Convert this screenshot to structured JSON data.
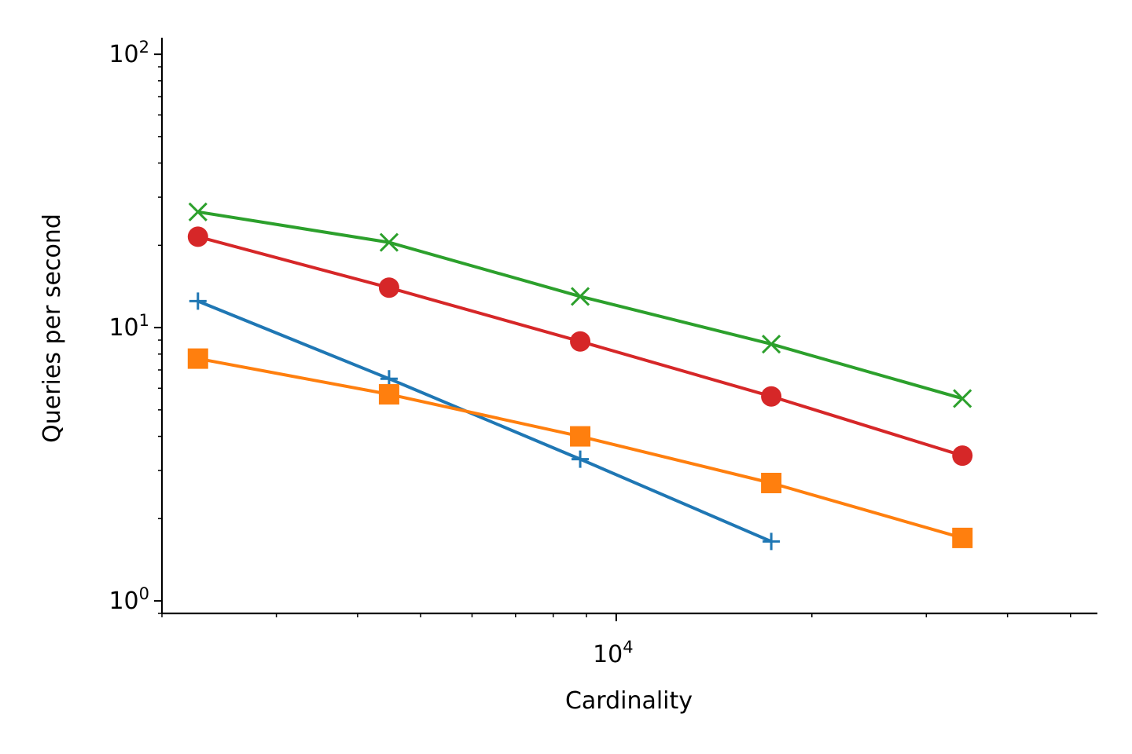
{
  "chart_data": {
    "type": "line",
    "title": "",
    "xlabel": "Cardinality",
    "ylabel": "Queries per second",
    "xscale": "log",
    "yscale": "log",
    "xlim": [
      2000,
      55000
    ],
    "ylim": [
      0.9,
      115
    ],
    "grid": false,
    "legend": "none",
    "x_tick_labels": [
      {
        "value": 10000,
        "base": "10",
        "exp": "4"
      }
    ],
    "y_tick_labels": [
      {
        "value": 1,
        "base": "10",
        "exp": "0"
      },
      {
        "value": 10,
        "base": "10",
        "exp": "1"
      },
      {
        "value": 100,
        "base": "10",
        "exp": "2"
      }
    ],
    "x": [
      2272,
      4472,
      8802,
      17320,
      34090
    ],
    "series": [
      {
        "color": "#1f77b4",
        "marker": "plus",
        "values": [
          12.5,
          6.5,
          3.3,
          1.65,
          null
        ]
      },
      {
        "color": "#ff7f0e",
        "marker": "square",
        "values": [
          7.7,
          5.7,
          4.0,
          2.7,
          1.7
        ]
      },
      {
        "color": "#2ca02c",
        "marker": "x",
        "values": [
          26.5,
          20.5,
          13.0,
          8.7,
          5.5
        ]
      },
      {
        "color": "#d62728",
        "marker": "circle",
        "values": [
          21.5,
          14.0,
          8.9,
          5.6,
          3.4
        ]
      }
    ]
  }
}
